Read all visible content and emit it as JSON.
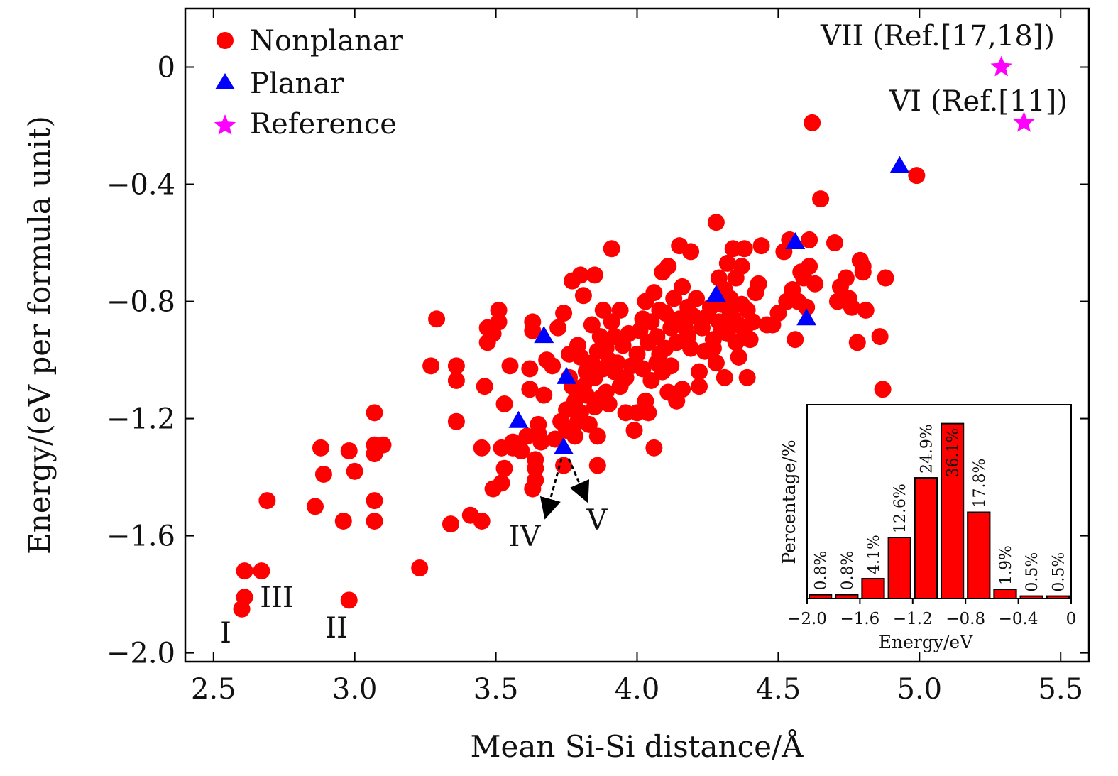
{
  "chart_data": [
    {
      "type": "scatter",
      "xlabel": "Mean Si-Si distance/Å",
      "ylabel": "Energy/(eV per formula unit)",
      "xlim": [
        2.4,
        5.6
      ],
      "ylim": [
        -2.03,
        0.2
      ],
      "xticks": [
        2.5,
        3.0,
        3.5,
        4.0,
        4.5,
        5.0,
        5.5
      ],
      "xtick_labels": [
        "2.5",
        "3.0",
        "3.5",
        "4.0",
        "4.5",
        "5.0",
        "5.5"
      ],
      "yticks": [
        0,
        -0.4,
        -0.8,
        -1.2,
        -1.6,
        -2.0
      ],
      "ytick_labels": [
        "0",
        "−0.4",
        "−0.8",
        "−1.2",
        "−1.6",
        "−2.0"
      ],
      "grid": false,
      "legend_position": "top-left",
      "series": [
        {
          "name": "Nonplanar",
          "marker": "circle",
          "color": "#ff0000",
          "points": [
            [
              2.61,
              -1.72
            ],
            [
              2.67,
              -1.72
            ],
            [
              2.61,
              -1.81
            ],
            [
              2.6,
              -1.85
            ],
            [
              2.69,
              -1.48
            ],
            [
              2.86,
              -1.5
            ],
            [
              2.88,
              -1.3
            ],
            [
              2.89,
              -1.39
            ],
            [
              2.96,
              -1.55
            ],
            [
              2.98,
              -1.82
            ],
            [
              2.98,
              -1.31
            ],
            [
              3.0,
              -1.38
            ],
            [
              3.07,
              -1.18
            ],
            [
              3.07,
              -1.29
            ],
            [
              3.07,
              -1.32
            ],
            [
              3.07,
              -1.48
            ],
            [
              3.07,
              -1.55
            ],
            [
              3.1,
              -1.29
            ],
            [
              3.23,
              -1.71
            ],
            [
              3.27,
              -1.02
            ],
            [
              3.29,
              -0.86
            ],
            [
              3.34,
              -1.56
            ],
            [
              3.36,
              -1.02
            ],
            [
              3.36,
              -1.07
            ],
            [
              3.36,
              -1.21
            ],
            [
              3.41,
              -1.53
            ],
            [
              3.45,
              -1.55
            ],
            [
              3.45,
              -1.3
            ],
            [
              3.46,
              -1.09
            ],
            [
              3.47,
              -0.89
            ],
            [
              3.47,
              -0.94
            ],
            [
              3.49,
              -1.44
            ],
            [
              3.49,
              -0.91
            ],
            [
              3.51,
              -0.83
            ],
            [
              3.51,
              -0.87
            ],
            [
              3.52,
              -1.3
            ],
            [
              3.52,
              -1.42
            ],
            [
              3.53,
              -1.15
            ],
            [
              3.53,
              -1.37
            ],
            [
              3.55,
              -1.02
            ],
            [
              3.56,
              -1.3
            ],
            [
              3.56,
              -1.28
            ],
            [
              3.59,
              -1.31
            ],
            [
              3.61,
              -1.26
            ],
            [
              3.62,
              -1.03
            ],
            [
              3.62,
              -1.1
            ],
            [
              3.63,
              -0.87
            ],
            [
              3.63,
              -0.9
            ],
            [
              3.63,
              -1.44
            ],
            [
              3.64,
              -1.37
            ],
            [
              3.64,
              -1.41
            ],
            [
              3.64,
              -1.34
            ],
            [
              3.65,
              -1.22
            ],
            [
              3.65,
              -1.25
            ],
            [
              3.66,
              -1.28
            ],
            [
              3.67,
              -1.12
            ],
            [
              3.68,
              -1.0
            ],
            [
              3.7,
              -1.02
            ],
            [
              3.71,
              -1.27
            ],
            [
              3.72,
              -0.89
            ],
            [
              3.73,
              -1.21
            ],
            [
              3.74,
              -1.36
            ],
            [
              3.74,
              -0.84
            ],
            [
              3.75,
              -1.17
            ],
            [
              3.75,
              -1.24
            ],
            [
              3.76,
              -1.06
            ],
            [
              3.76,
              -0.98
            ],
            [
              3.77,
              -1.09
            ],
            [
              3.77,
              -0.73
            ],
            [
              3.78,
              -1.26
            ],
            [
              3.78,
              -1.14
            ],
            [
              3.79,
              -0.95
            ],
            [
              3.79,
              -1.21
            ],
            [
              3.8,
              -0.99
            ],
            [
              3.8,
              -1.18
            ],
            [
              3.8,
              -0.71
            ],
            [
              3.81,
              -1.09
            ],
            [
              3.81,
              -0.78
            ],
            [
              3.82,
              -1.12
            ],
            [
              3.82,
              -1.04
            ],
            [
              3.83,
              -1.22
            ],
            [
              3.84,
              -0.88
            ],
            [
              3.84,
              -1.01
            ],
            [
              3.85,
              -0.71
            ],
            [
              3.85,
              -1.06
            ],
            [
              3.85,
              -1.16
            ],
            [
              3.86,
              -1.26
            ],
            [
              3.86,
              -0.97
            ],
            [
              3.86,
              -1.36
            ],
            [
              3.87,
              -0.92
            ],
            [
              3.87,
              -1.13
            ],
            [
              3.88,
              -0.83
            ],
            [
              3.88,
              -1.03
            ],
            [
              3.89,
              -1.11
            ],
            [
              3.89,
              -0.96
            ],
            [
              3.9,
              -1.0
            ],
            [
              3.9,
              -1.15
            ],
            [
              3.91,
              -0.87
            ],
            [
              3.91,
              -0.62
            ],
            [
              3.92,
              -1.04
            ],
            [
              3.92,
              -0.92
            ],
            [
              3.93,
              -1.01
            ],
            [
              3.94,
              -1.09
            ],
            [
              3.94,
              -0.83
            ],
            [
              3.95,
              -0.95
            ],
            [
              3.96,
              -1.06
            ],
            [
              3.96,
              -1.18
            ],
            [
              3.97,
              -0.91
            ],
            [
              3.98,
              -1.02
            ],
            [
              3.99,
              -1.24
            ],
            [
              4.0,
              -0.98
            ],
            [
              4.0,
              -1.18
            ],
            [
              4.01,
              -0.9
            ],
            [
              4.02,
              -0.86
            ],
            [
              4.02,
              -1.03
            ],
            [
              4.03,
              -1.14
            ],
            [
              4.03,
              -0.8
            ],
            [
              4.04,
              -0.94
            ],
            [
              4.04,
              -1.18
            ],
            [
              4.05,
              -0.87
            ],
            [
              4.05,
              -1.07
            ],
            [
              4.06,
              -0.77
            ],
            [
              4.06,
              -1.3
            ],
            [
              4.07,
              -0.92
            ],
            [
              4.07,
              -1.01
            ],
            [
              4.08,
              -0.83
            ],
            [
              4.08,
              -0.98
            ],
            [
              4.09,
              -0.7
            ],
            [
              4.09,
              -1.04
            ],
            [
              4.1,
              -0.84
            ],
            [
              4.1,
              -0.96
            ],
            [
              4.11,
              -0.68
            ],
            [
              4.11,
              -1.11
            ],
            [
              4.12,
              -0.89
            ],
            [
              4.12,
              -1.02
            ],
            [
              4.13,
              -0.79
            ],
            [
              4.14,
              -0.94
            ],
            [
              4.14,
              -1.14
            ],
            [
              4.15,
              -0.86
            ],
            [
              4.15,
              -0.61
            ],
            [
              4.16,
              -1.1
            ],
            [
              4.16,
              -0.75
            ],
            [
              4.17,
              -0.89
            ],
            [
              4.18,
              -0.92
            ],
            [
              4.18,
              -0.82
            ],
            [
              4.19,
              -0.63
            ],
            [
              4.19,
              -0.96
            ],
            [
              4.2,
              -0.85
            ],
            [
              4.21,
              -0.79
            ],
            [
              4.22,
              -1.04
            ],
            [
              4.22,
              -1.09
            ],
            [
              4.23,
              -0.89
            ],
            [
              4.24,
              -0.97
            ],
            [
              4.25,
              -0.85
            ],
            [
              4.26,
              -0.82
            ],
            [
              4.27,
              -0.93
            ],
            [
              4.27,
              -0.96
            ],
            [
              4.28,
              -1.01
            ],
            [
              4.28,
              -0.53
            ],
            [
              4.29,
              -0.87
            ],
            [
              4.29,
              -0.72
            ],
            [
              4.3,
              -0.9
            ],
            [
              4.3,
              -0.81
            ],
            [
              4.31,
              -1.06
            ],
            [
              4.31,
              -0.76
            ],
            [
              4.32,
              -0.91
            ],
            [
              4.32,
              -0.67
            ],
            [
              4.33,
              -0.84
            ],
            [
              4.33,
              -0.79
            ],
            [
              4.34,
              -0.62
            ],
            [
              4.34,
              -0.86
            ],
            [
              4.35,
              -0.94
            ],
            [
              4.35,
              -0.72
            ],
            [
              4.36,
              -0.88
            ],
            [
              4.36,
              -0.99
            ],
            [
              4.37,
              -0.81
            ],
            [
              4.37,
              -0.68
            ],
            [
              4.38,
              -0.9
            ],
            [
              4.38,
              -0.62
            ],
            [
              4.39,
              -0.83
            ],
            [
              4.39,
              -1.06
            ],
            [
              4.4,
              -0.93
            ],
            [
              4.41,
              -0.87
            ],
            [
              4.42,
              -0.77
            ],
            [
              4.43,
              -0.74
            ],
            [
              4.44,
              -0.61
            ],
            [
              4.46,
              -0.88
            ],
            [
              4.48,
              -0.88
            ],
            [
              4.5,
              -0.84
            ],
            [
              4.52,
              -0.63
            ],
            [
              4.53,
              -0.8
            ],
            [
              4.54,
              -0.59
            ],
            [
              4.55,
              -0.76
            ],
            [
              4.56,
              -0.93
            ],
            [
              4.57,
              -0.8
            ],
            [
              4.58,
              -0.7
            ],
            [
              4.59,
              -0.72
            ],
            [
              4.6,
              -0.82
            ],
            [
              4.61,
              -0.59
            ],
            [
              4.61,
              -0.68
            ],
            [
              4.62,
              -0.19
            ],
            [
              4.63,
              -0.74
            ],
            [
              4.65,
              -0.45
            ],
            [
              4.7,
              -0.6
            ],
            [
              4.71,
              -0.8
            ],
            [
              4.72,
              -0.75
            ],
            [
              4.74,
              -0.72
            ],
            [
              4.75,
              -0.79
            ],
            [
              4.76,
              -0.82
            ],
            [
              4.78,
              -0.94
            ],
            [
              4.79,
              -0.66
            ],
            [
              4.8,
              -0.68
            ],
            [
              4.8,
              -0.7
            ],
            [
              4.81,
              -0.83
            ],
            [
              4.86,
              -0.92
            ],
            [
              4.87,
              -1.1
            ],
            [
              4.88,
              -0.72
            ],
            [
              4.99,
              -0.37
            ]
          ]
        },
        {
          "name": "Planar",
          "marker": "triangle",
          "color": "#0000ff",
          "points": [
            [
              3.58,
              -1.21
            ],
            [
              3.67,
              -0.92
            ],
            [
              3.74,
              -1.3
            ],
            [
              3.75,
              -1.06
            ],
            [
              4.28,
              -0.78
            ],
            [
              4.56,
              -0.6
            ],
            [
              4.6,
              -0.86
            ],
            [
              4.93,
              -0.34
            ]
          ]
        },
        {
          "name": "Reference",
          "marker": "star",
          "color": "#ff00ff",
          "points": [
            [
              5.29,
              0.0
            ],
            [
              5.37,
              -0.19
            ]
          ]
        }
      ],
      "point_labels": [
        {
          "text": "I",
          "x": 2.6,
          "y": -1.85
        },
        {
          "text": "II",
          "x": 2.98,
          "y": -1.82
        },
        {
          "text": "III",
          "x": 2.61,
          "y": -1.81
        },
        {
          "text": "IV",
          "x": 3.74,
          "y": -1.3
        },
        {
          "text": "V",
          "x": 3.74,
          "y": -1.3
        },
        {
          "text": "VI (Ref.[11])",
          "x": 5.37,
          "y": -0.19
        },
        {
          "text": "VII (Ref.[17,18])",
          "x": 5.29,
          "y": 0.0
        }
      ]
    },
    {
      "type": "bar",
      "inset": true,
      "xlabel": "Energy/eV",
      "ylabel": "Percentage/%",
      "xlim": [
        -2.0,
        0.0
      ],
      "ylim": [
        0,
        40
      ],
      "xticks": [
        -2.0,
        -1.6,
        -1.2,
        -0.8,
        -0.4,
        0
      ],
      "xtick_labels": [
        "−2.0",
        "−1.6",
        "−1.2",
        "−0.8",
        "−0.4",
        "0"
      ],
      "bar_color": "#ff0000",
      "bars": [
        {
          "center": -1.9,
          "value": 0.8,
          "label": "0.8%"
        },
        {
          "center": -1.7,
          "value": 0.8,
          "label": "0.8%"
        },
        {
          "center": -1.5,
          "value": 4.1,
          "label": "4.1%"
        },
        {
          "center": -1.3,
          "value": 12.6,
          "label": "12.6%"
        },
        {
          "center": -1.1,
          "value": 24.9,
          "label": "24.9%"
        },
        {
          "center": -0.9,
          "value": 36.1,
          "label": "36.1%"
        },
        {
          "center": -0.7,
          "value": 17.8,
          "label": "17.8%"
        },
        {
          "center": -0.5,
          "value": 1.9,
          "label": "1.9%"
        },
        {
          "center": -0.3,
          "value": 0.5,
          "label": "0.5%"
        },
        {
          "center": -0.1,
          "value": 0.5,
          "label": "0.5%"
        }
      ]
    }
  ]
}
